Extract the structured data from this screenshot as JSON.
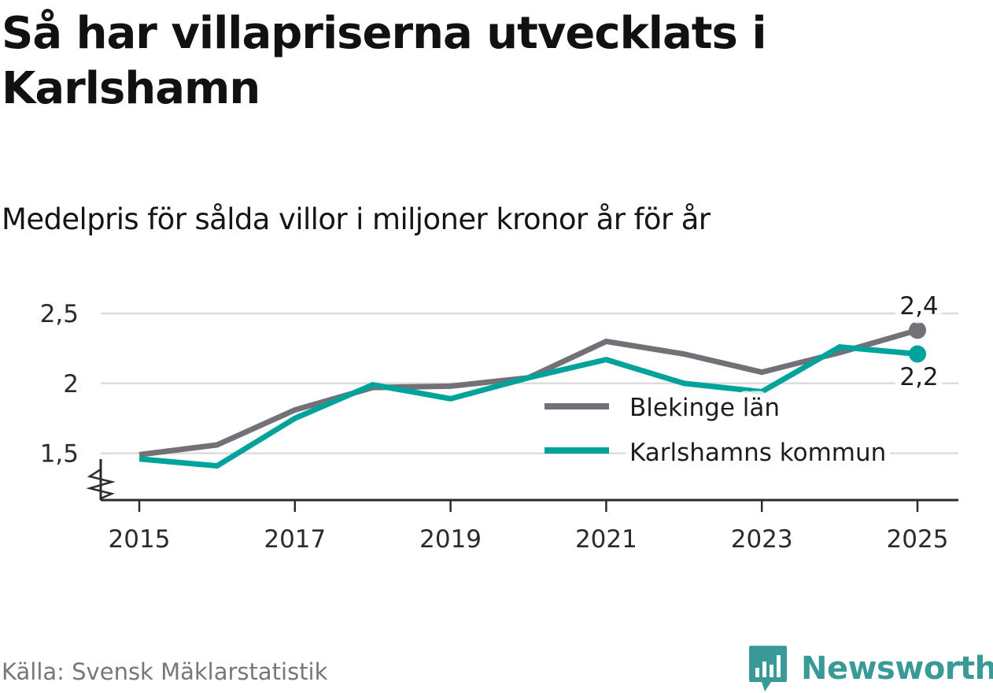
{
  "title": "Så har villapriserna utvecklats i Karlshamn",
  "subtitle": "Medelpris för sålda villor i miljoner kronor år för år",
  "source": "Källa: Svensk Mäklarstatistik",
  "brand": {
    "name": "Newsworthy",
    "icon": "newsworthy-chart-bubble-icon",
    "color": "#3a9a97"
  },
  "chart_data": {
    "type": "line",
    "title": "",
    "xlabel": "",
    "ylabel": "",
    "x": [
      2015,
      2016,
      2017,
      2018,
      2019,
      2020,
      2021,
      2022,
      2023,
      2024,
      2025
    ],
    "xticks": [
      "2015",
      "2017",
      "2019",
      "2021",
      "2023",
      "2025"
    ],
    "xlim": [
      2015,
      2025
    ],
    "yticks": [
      "1,5",
      "2",
      "2,5"
    ],
    "ylim": [
      1.25,
      2.5
    ],
    "grid": true,
    "axis_break": true,
    "legend_position": "bottom-right",
    "series": [
      {
        "name": "Blekinge län",
        "color": "#737177",
        "values": [
          1.49,
          1.56,
          1.81,
          1.97,
          1.98,
          2.04,
          2.3,
          2.21,
          2.08,
          2.22,
          2.38
        ],
        "end_label": "2,4"
      },
      {
        "name": "Karlshamns kommun",
        "color": "#00a39b",
        "values": [
          1.46,
          1.41,
          1.75,
          1.99,
          1.89,
          2.04,
          2.17,
          2.0,
          1.94,
          2.26,
          2.21
        ],
        "end_label": "2,2"
      }
    ]
  }
}
